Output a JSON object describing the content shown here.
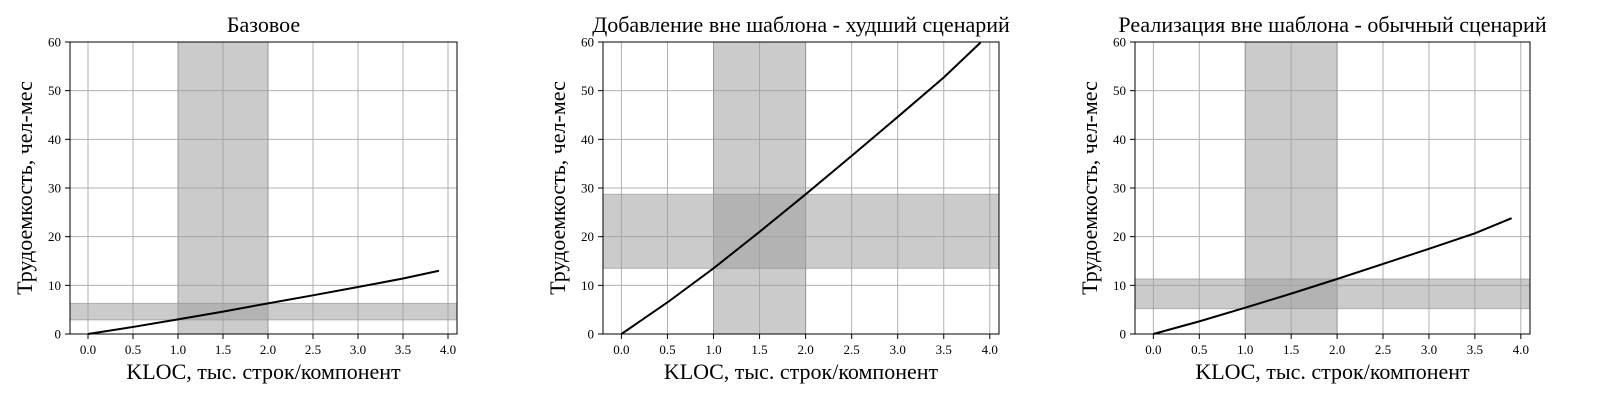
{
  "chart_data": [
    {
      "type": "line",
      "title": "Базовое",
      "xlabel": "KLOC, тыс. строк/компонент",
      "ylabel": "Трудоемкость, чел-мес",
      "xlim": [
        -0.2,
        4.1
      ],
      "ylim": [
        0,
        60
      ],
      "xticks": [
        "0.0",
        "0.5",
        "1.0",
        "1.5",
        "2.0",
        "2.5",
        "3.0",
        "3.5",
        "4.0"
      ],
      "yticks": [
        "0",
        "10",
        "20",
        "30",
        "40",
        "50",
        "60"
      ],
      "grid": true,
      "bands": {
        "x_range": [
          1.0,
          2.0
        ],
        "y_range": [
          2.9,
          6.3
        ]
      },
      "series": [
        {
          "x": [
            0,
            0.5,
            1.0,
            1.5,
            2.0,
            2.5,
            3.0,
            3.5,
            3.9
          ],
          "y": [
            0,
            1.45,
            3.0,
            4.6,
            6.3,
            7.95,
            9.65,
            11.4,
            13.0
          ]
        }
      ]
    },
    {
      "type": "line",
      "title": "Добавление вне шаблона - худший сценарий",
      "xlabel": "KLOC, тыс. строк/компонент",
      "ylabel": "Трудоемкость, чел-мес",
      "xlim": [
        -0.2,
        4.1
      ],
      "ylim": [
        0,
        60
      ],
      "xticks": [
        "0.0",
        "0.5",
        "1.0",
        "1.5",
        "2.0",
        "2.5",
        "3.0",
        "3.5",
        "4.0"
      ],
      "yticks": [
        "0",
        "10",
        "20",
        "30",
        "40",
        "50",
        "60"
      ],
      "grid": true,
      "bands": {
        "x_range": [
          1.0,
          2.0
        ],
        "y_range": [
          13.5,
          28.7
        ]
      },
      "series": [
        {
          "x": [
            0,
            0.5,
            1.0,
            1.5,
            2.0,
            2.5,
            3.0,
            3.5,
            3.9
          ],
          "y": [
            0,
            6.5,
            13.5,
            21.0,
            28.7,
            36.6,
            44.6,
            52.7,
            59.9
          ]
        }
      ]
    },
    {
      "type": "line",
      "title": "Реализация вне шаблона - обычный сценарий",
      "xlabel": "KLOC, тыс. строк/компонент",
      "ylabel": "Трудоемкость, чел-мес",
      "xlim": [
        -0.2,
        4.1
      ],
      "ylim": [
        0,
        60
      ],
      "xticks": [
        "0.0",
        "0.5",
        "1.0",
        "1.5",
        "2.0",
        "2.5",
        "3.0",
        "3.5",
        "4.0"
      ],
      "yticks": [
        "0",
        "10",
        "20",
        "30",
        "40",
        "50",
        "60"
      ],
      "grid": true,
      "bands": {
        "x_range": [
          1.0,
          2.0
        ],
        "y_range": [
          5.2,
          11.3
        ]
      },
      "series": [
        {
          "x": [
            0,
            0.5,
            1.0,
            1.5,
            2.0,
            2.5,
            3.0,
            3.5,
            3.9
          ],
          "y": [
            0,
            2.6,
            5.4,
            8.3,
            11.3,
            14.4,
            17.5,
            20.7,
            23.8
          ]
        }
      ]
    }
  ]
}
